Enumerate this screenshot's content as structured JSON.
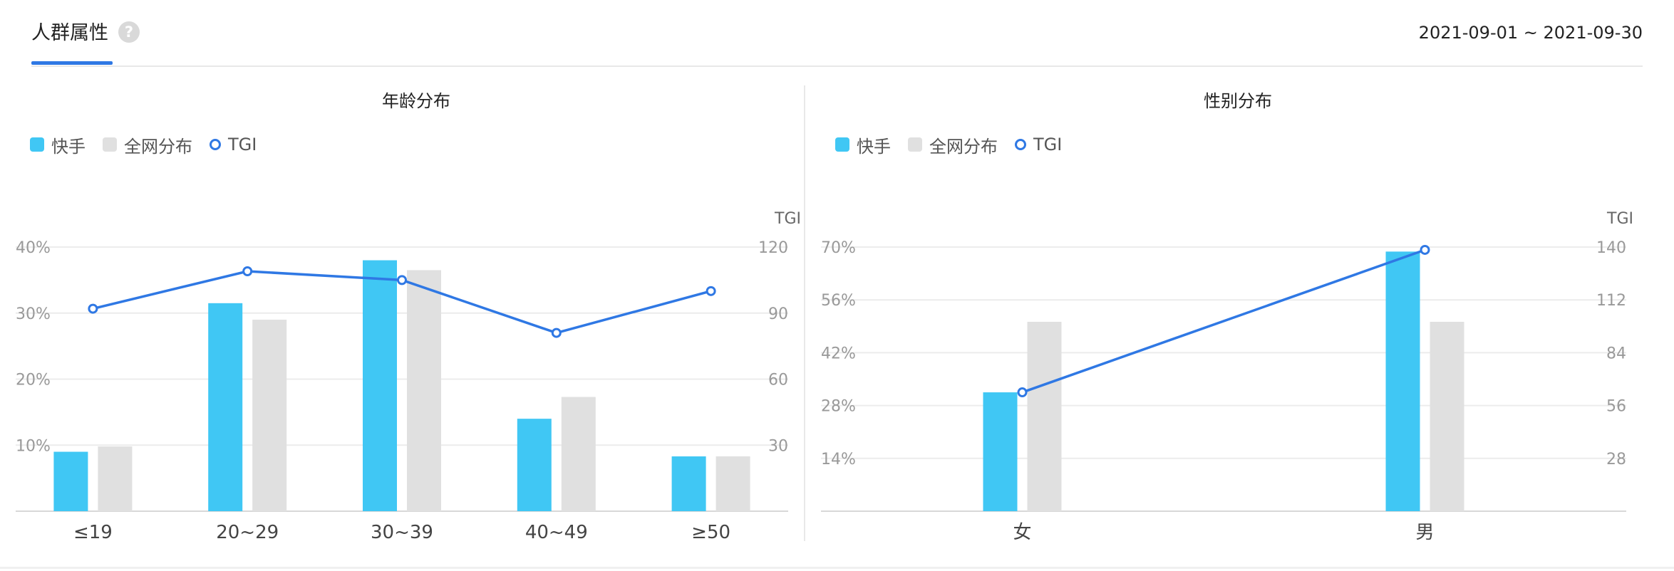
{
  "header": {
    "tab_label": "人群属性",
    "help_glyph": "?",
    "date_range": "2021-09-01 ~ 2021-09-30"
  },
  "colors": {
    "kuaishou": "#40c7f4",
    "network": "#e0e0e0",
    "tgi": "#2f78e4",
    "accent": "#2f78e4"
  },
  "chart_data": [
    {
      "id": "age",
      "type": "bar",
      "title": "年龄分布",
      "legend": [
        "快手",
        "全网分布",
        "TGI"
      ],
      "categories": [
        "≤19",
        "20~29",
        "30~39",
        "40~49",
        "≥50"
      ],
      "series": [
        {
          "name": "快手",
          "type": "bar",
          "values": [
            9,
            31.5,
            38,
            14,
            8.3
          ]
        },
        {
          "name": "全网分布",
          "type": "bar",
          "values": [
            9.8,
            29,
            36.5,
            17.3,
            8.3
          ]
        },
        {
          "name": "TGI",
          "type": "line",
          "axis": "right",
          "values": [
            92,
            109,
            105,
            81,
            100
          ]
        }
      ],
      "ylim": [
        0,
        40
      ],
      "yticks": [
        10,
        20,
        30,
        40
      ],
      "ytick_labels": [
        "10%",
        "20%",
        "30%",
        "40%"
      ],
      "y2lim": [
        0,
        120
      ],
      "y2ticks": [
        30,
        60,
        90,
        120
      ],
      "y2tick_labels": [
        "30",
        "60",
        "90",
        "120"
      ],
      "y2label": "TGI"
    },
    {
      "id": "gender",
      "type": "bar",
      "title": "性别分布",
      "legend": [
        "快手",
        "全网分布",
        "TGI"
      ],
      "categories": [
        "女",
        "男"
      ],
      "series": [
        {
          "name": "快手",
          "type": "bar",
          "values": [
            31.5,
            68.8
          ]
        },
        {
          "name": "全网分布",
          "type": "bar",
          "values": [
            50.2,
            50.2
          ]
        },
        {
          "name": "TGI",
          "type": "line",
          "axis": "right",
          "values": [
            63,
            138.5
          ]
        }
      ],
      "ylim": [
        0,
        70
      ],
      "yticks": [
        14,
        28,
        42,
        56,
        70
      ],
      "ytick_labels": [
        "14%",
        "28%",
        "42%",
        "56%",
        "70%"
      ],
      "y2lim": [
        0,
        140
      ],
      "y2ticks": [
        28,
        56,
        84,
        112,
        140
      ],
      "y2tick_labels": [
        "28",
        "56",
        "84",
        "112",
        "140"
      ],
      "y2label": "TGI"
    }
  ]
}
